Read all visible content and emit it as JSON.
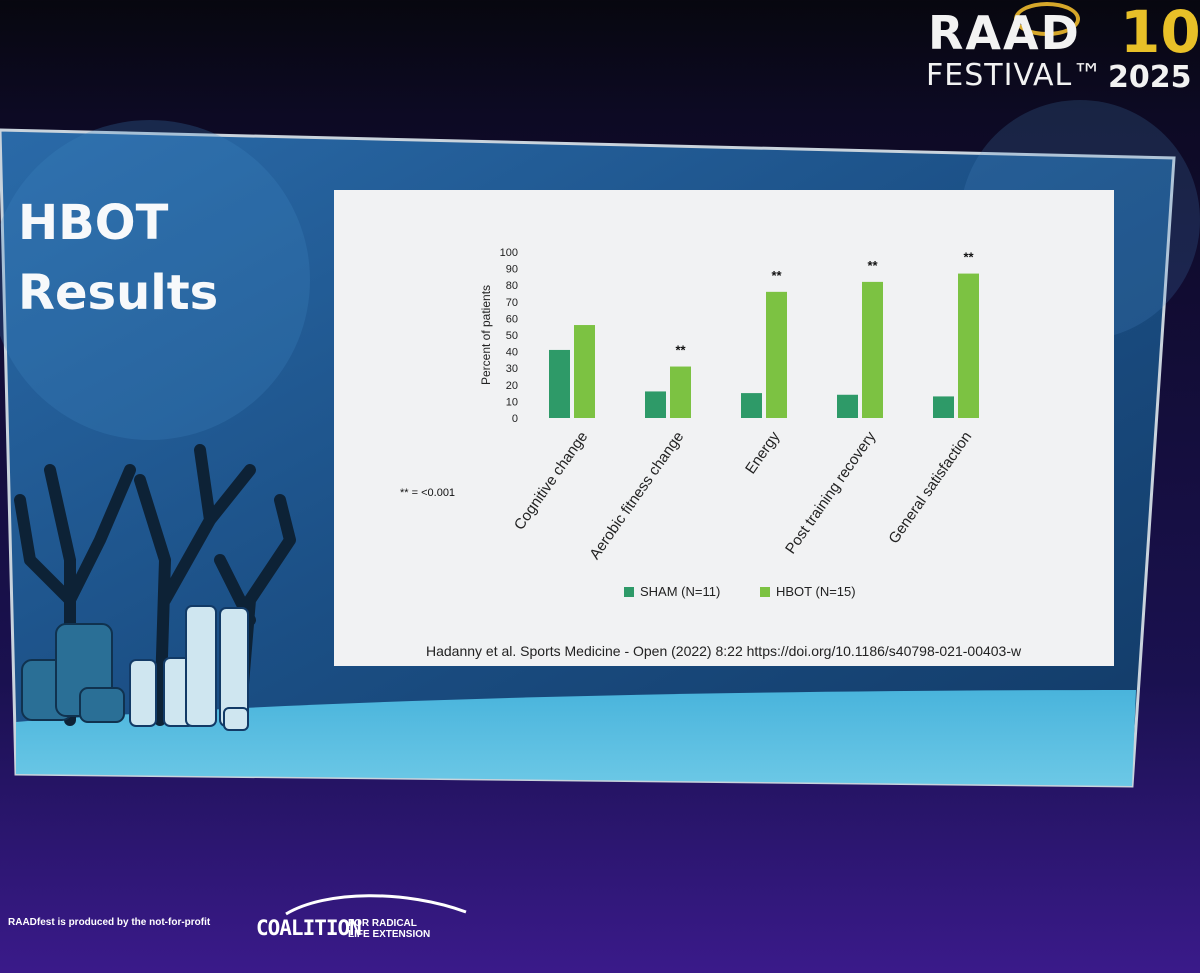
{
  "event_logo": {
    "line1": "RAAD",
    "number": "10",
    "line2": "FESTIVAL™",
    "year": "2025"
  },
  "slide": {
    "title_line1": "HBOT",
    "title_line2": "Results",
    "significance_note": "** = <0.001",
    "citation": "Hadanny et al. Sports Medicine - Open (2022) 8:22 https://doi.org/10.1186/s40798-021-00403-w"
  },
  "footer": {
    "credit": "RAADfest is produced by the not-for-profit",
    "org_word": "COALITION",
    "org_sub1": "FOR RADICAL",
    "org_sub2": "LIFE EXTENSION"
  },
  "colors": {
    "sham": "#2e9a68",
    "hbot": "#7cc242",
    "slide_blue": "#1d4f86",
    "chart_bg": "#f1f2f3"
  },
  "chart_data": {
    "type": "bar",
    "categories": [
      "Cognitive change",
      "Aerobic fitness change",
      "Energy",
      "Post training recovery",
      "General satisfaction"
    ],
    "series": [
      {
        "name": "SHAM (N=11)",
        "values": [
          41,
          16,
          15,
          14,
          13
        ]
      },
      {
        "name": "HBOT (N=15)",
        "values": [
          56,
          31,
          76,
          82,
          87
        ]
      }
    ],
    "significance": [
      "",
      "**",
      "**",
      "**",
      "**"
    ],
    "title": "",
    "xlabel": "",
    "ylabel": "Percent of patients",
    "ylim": [
      0,
      100
    ],
    "yticks": [
      0,
      10,
      20,
      30,
      40,
      50,
      60,
      70,
      80,
      90,
      100
    ],
    "grid": false,
    "legend": "bottom"
  }
}
